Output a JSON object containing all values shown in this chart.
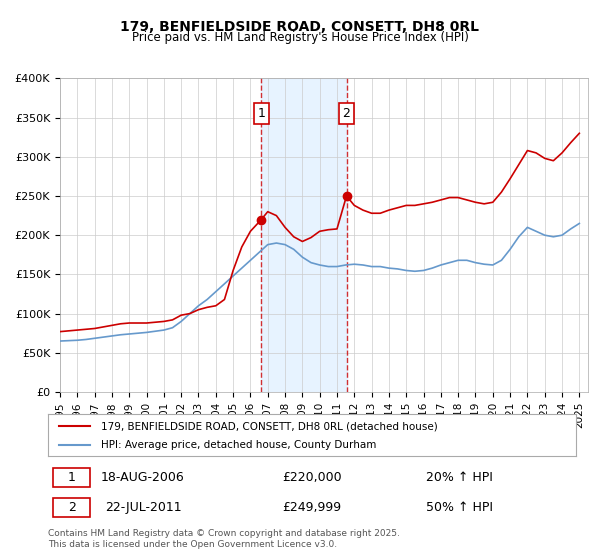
{
  "title": "179, BENFIELDSIDE ROAD, CONSETT, DH8 0RL",
  "subtitle": "Price paid vs. HM Land Registry's House Price Index (HPI)",
  "legend_line1": "179, BENFIELDSIDE ROAD, CONSETT, DH8 0RL (detached house)",
  "legend_line2": "HPI: Average price, detached house, County Durham",
  "footnote": "Contains HM Land Registry data © Crown copyright and database right 2025.\nThis data is licensed under the Open Government Licence v3.0.",
  "red_color": "#cc0000",
  "blue_color": "#6699cc",
  "background_color": "#ffffff",
  "grid_color": "#cccccc",
  "sale1_date": "18-AUG-2006",
  "sale1_price": "£220,000",
  "sale1_hpi": "20% ↑ HPI",
  "sale1_x": 2006.63,
  "sale1_y": 220000,
  "sale2_date": "22-JUL-2011",
  "sale2_price": "£249,999",
  "sale2_hpi": "50% ↑ HPI",
  "sale2_x": 2011.55,
  "sale2_y": 249999,
  "shade_x1": 2006.63,
  "shade_x2": 2011.55,
  "ylim": [
    0,
    400000
  ],
  "yticks": [
    0,
    50000,
    100000,
    150000,
    200000,
    250000,
    300000,
    350000,
    400000
  ],
  "xlim_start": 1995.0,
  "xlim_end": 2025.5,
  "hpi_x": [
    1995,
    1995.5,
    1996,
    1996.5,
    1997,
    1997.5,
    1998,
    1998.5,
    1999,
    1999.5,
    2000,
    2000.5,
    2001,
    2001.5,
    2002,
    2002.5,
    2003,
    2003.5,
    2004,
    2004.5,
    2005,
    2005.5,
    2006,
    2006.5,
    2007,
    2007.5,
    2008,
    2008.5,
    2009,
    2009.5,
    2010,
    2010.5,
    2011,
    2011.5,
    2012,
    2012.5,
    2013,
    2013.5,
    2014,
    2014.5,
    2015,
    2015.5,
    2016,
    2016.5,
    2017,
    2017.5,
    2018,
    2018.5,
    2019,
    2019.5,
    2020,
    2020.5,
    2021,
    2021.5,
    2022,
    2022.5,
    2023,
    2023.5,
    2024,
    2024.5,
    2025
  ],
  "hpi_y": [
    65000,
    65500,
    66000,
    67000,
    68500,
    70000,
    71500,
    73000,
    74000,
    75000,
    76000,
    77500,
    79000,
    82000,
    90000,
    100000,
    110000,
    118000,
    128000,
    138000,
    148000,
    158000,
    168000,
    178000,
    188000,
    190000,
    188000,
    182000,
    172000,
    165000,
    162000,
    160000,
    160000,
    162000,
    163000,
    162000,
    160000,
    160000,
    158000,
    157000,
    155000,
    154000,
    155000,
    158000,
    162000,
    165000,
    168000,
    168000,
    165000,
    163000,
    162000,
    168000,
    182000,
    198000,
    210000,
    205000,
    200000,
    198000,
    200000,
    208000,
    215000
  ],
  "red_x": [
    1995,
    1995.5,
    1996,
    1996.5,
    1997,
    1997.5,
    1998,
    1998.5,
    1999,
    1999.5,
    2000,
    2000.5,
    2001,
    2001.5,
    2002,
    2002.5,
    2003,
    2003.5,
    2004,
    2004.5,
    2005,
    2005.5,
    2006,
    2006.63,
    2007,
    2007.5,
    2008,
    2008.5,
    2009,
    2009.5,
    2010,
    2010.5,
    2011,
    2011.55,
    2012,
    2012.5,
    2013,
    2013.5,
    2014,
    2014.5,
    2015,
    2015.5,
    2016,
    2016.5,
    2017,
    2017.5,
    2018,
    2018.5,
    2019,
    2019.5,
    2020,
    2020.5,
    2021,
    2021.5,
    2022,
    2022.5,
    2023,
    2023.5,
    2024,
    2024.5,
    2025
  ],
  "red_y": [
    77000,
    78000,
    79000,
    80000,
    81000,
    83000,
    85000,
    87000,
    88000,
    88000,
    88000,
    89000,
    90000,
    92000,
    98000,
    100000,
    105000,
    108000,
    110000,
    118000,
    155000,
    185000,
    205000,
    220000,
    230000,
    225000,
    210000,
    198000,
    192000,
    197000,
    205000,
    207000,
    208000,
    249999,
    238000,
    232000,
    228000,
    228000,
    232000,
    235000,
    238000,
    238000,
    240000,
    242000,
    245000,
    248000,
    248000,
    245000,
    242000,
    240000,
    242000,
    255000,
    272000,
    290000,
    308000,
    305000,
    298000,
    295000,
    305000,
    318000,
    330000
  ]
}
